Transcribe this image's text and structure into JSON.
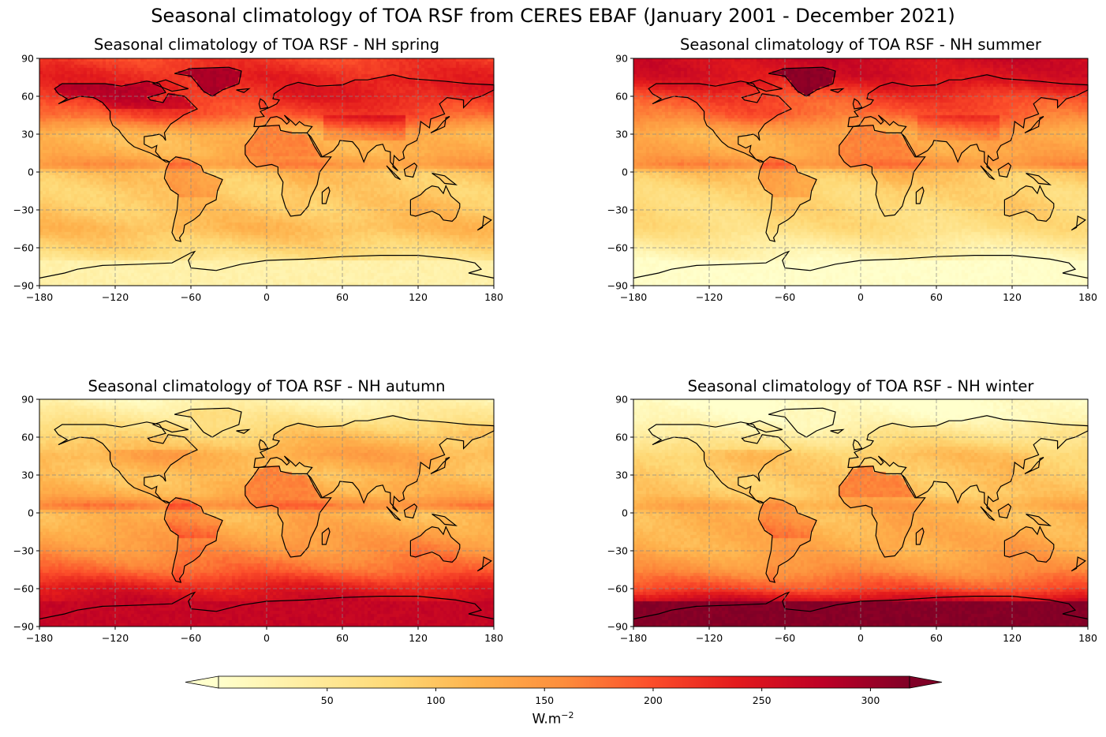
{
  "title": "Seasonal climatology of TOA RSF from CERES EBAF (January 2001 - December 2021)",
  "chart_data": [
    {
      "type": "heatmap",
      "title": "Seasonal climatology of TOA RSF - NH spring",
      "season": "spring",
      "xlim": [
        -180,
        180
      ],
      "ylim": [
        -90,
        90
      ],
      "xticks": [
        -180,
        -120,
        -60,
        0,
        60,
        120,
        180
      ],
      "yticks": [
        -90,
        -60,
        -30,
        0,
        30,
        60,
        90
      ],
      "grid": true,
      "approx_zonal_values": {
        "lat": [
          90,
          75,
          60,
          45,
          30,
          15,
          5,
          0,
          -15,
          -30,
          -45,
          -60,
          -75,
          -90
        ],
        "value": [
          210,
          230,
          220,
          190,
          110,
          120,
          150,
          100,
          90,
          95,
          110,
          80,
          45,
          25
        ]
      }
    },
    {
      "type": "heatmap",
      "title": "Seasonal climatology of TOA RSF - NH summer",
      "season": "summer",
      "xlim": [
        -180,
        180
      ],
      "ylim": [
        -90,
        90
      ],
      "xticks": [
        -180,
        -120,
        -60,
        0,
        60,
        120,
        180
      ],
      "yticks": [
        -90,
        -60,
        -30,
        0,
        30,
        60,
        90
      ],
      "grid": true,
      "approx_zonal_values": {
        "lat": [
          90,
          75,
          60,
          45,
          30,
          15,
          5,
          0,
          -15,
          -30,
          -45,
          -60,
          -75,
          -90
        ],
        "value": [
          260,
          250,
          200,
          175,
          120,
          130,
          160,
          100,
          80,
          75,
          70,
          35,
          5,
          0
        ]
      }
    },
    {
      "type": "heatmap",
      "title": "Seasonal climatology of TOA RSF - NH autumn",
      "season": "autumn",
      "xlim": [
        -180,
        180
      ],
      "ylim": [
        -90,
        90
      ],
      "xticks": [
        -180,
        -120,
        -60,
        0,
        60,
        120,
        180
      ],
      "yticks": [
        -90,
        -60,
        -30,
        0,
        30,
        60,
        90
      ],
      "grid": true,
      "approx_zonal_values": {
        "lat": [
          90,
          75,
          60,
          45,
          30,
          15,
          5,
          0,
          -15,
          -30,
          -45,
          -60,
          -75,
          -90
        ],
        "value": [
          20,
          50,
          90,
          120,
          100,
          120,
          170,
          110,
          130,
          150,
          180,
          240,
          275,
          270
        ]
      }
    },
    {
      "type": "heatmap",
      "title": "Seasonal climatology of TOA RSF - NH winter",
      "season": "winter",
      "xlim": [
        -180,
        180
      ],
      "ylim": [
        -90,
        90
      ],
      "xticks": [
        -180,
        -120,
        -60,
        0,
        60,
        120,
        180
      ],
      "yticks": [
        -90,
        -60,
        -30,
        0,
        30,
        60,
        90
      ],
      "grid": true,
      "approx_zonal_values": {
        "lat": [
          90,
          75,
          60,
          45,
          30,
          15,
          5,
          0,
          -15,
          -30,
          -45,
          -60,
          -75,
          -90
        ],
        "value": [
          0,
          10,
          50,
          90,
          90,
          95,
          130,
          110,
          120,
          125,
          150,
          200,
          300,
          310
        ]
      }
    }
  ],
  "colorbar": {
    "colormap": "YlOrRd",
    "vmin": 0,
    "vmax": 318,
    "extend": "both",
    "ticks": [
      50,
      100,
      150,
      200,
      250,
      300
    ],
    "label_base": "W.m",
    "label_exp": "−2",
    "colors": [
      "#ffffcc",
      "#ffeda0",
      "#fed976",
      "#feb24c",
      "#fd8d3c",
      "#fc4e2a",
      "#e31a1c",
      "#bd0026",
      "#800026"
    ]
  }
}
